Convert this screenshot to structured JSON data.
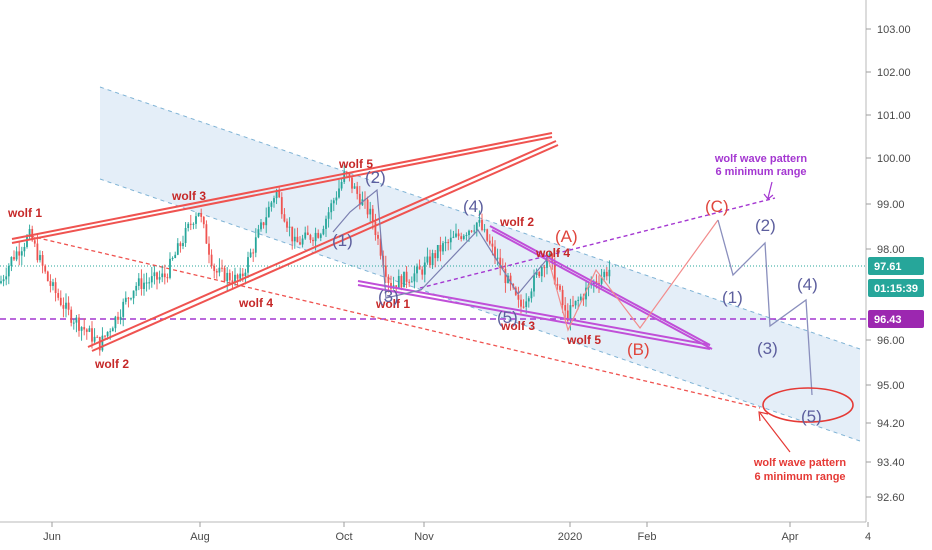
{
  "chart_data": {
    "type": "candlestick",
    "title": "",
    "instrument": "DXY",
    "y_axis": {
      "min": 92.3,
      "max": 103.6,
      "ticks": [
        "103.00",
        "102.00",
        "101.00",
        "100.00",
        "99.00",
        "98.00",
        "96.00",
        "95.00",
        "94.20",
        "93.40",
        "92.60"
      ]
    },
    "x_axis": {
      "ticks": [
        "Jun",
        "Aug",
        "Oct",
        "Nov",
        "2020",
        "Feb",
        "Apr",
        "4"
      ]
    },
    "grid": false,
    "price_badges": [
      {
        "value": "97.61",
        "color": "#26a69a"
      },
      {
        "value": "01:15:39",
        "color": "#26a69a"
      },
      {
        "value": "96.43",
        "color": "#9c27b0"
      }
    ],
    "annotations": {
      "wolf_left": [
        "wolf 1",
        "wolf 2",
        "wolf 3",
        "wolf 4",
        "wolf 5"
      ],
      "wolf_right": [
        "wolf 1",
        "wolf 2",
        "wolf 3",
        "wolf 4",
        "wolf 5"
      ],
      "waves_mid": [
        "(1)",
        "(2)",
        "(3)",
        "(4)",
        "(5)"
      ],
      "waves_abc": [
        "(A)",
        "(B)",
        "(C)"
      ],
      "waves_future": [
        "(1)",
        "(2)",
        "(3)",
        "(4)",
        "(5)"
      ],
      "note_purple": [
        "wolf wave pattern",
        "6 minimum range"
      ],
      "note_red": [
        "wolf wave pattern",
        "6 minimum range"
      ]
    },
    "colors": {
      "up": "#26a69a",
      "down": "#ef5350",
      "channel_fill": "#dbe8f6",
      "channel_line": "#7fb3d5",
      "wolf_red": "#ef5350",
      "wolf_purple": "#b84cd6",
      "dashed_purple": "#a437d1",
      "wave_purple": "#5d5f9e",
      "wave_red": "#e0463d"
    }
  }
}
